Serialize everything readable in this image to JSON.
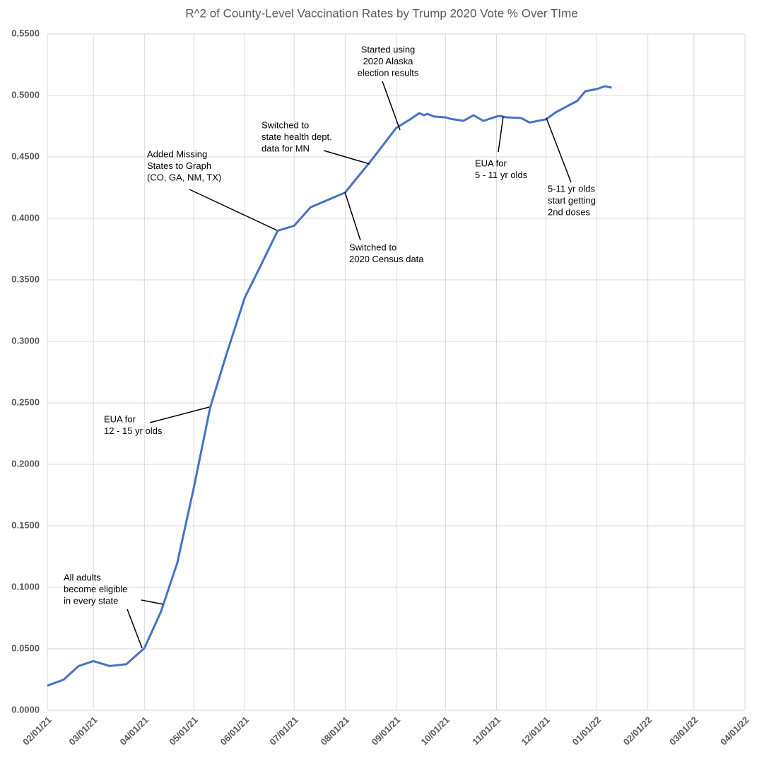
{
  "chart_data": {
    "type": "line",
    "title": "R^2 of County-Level Vaccination Rates by Trump 2020 Vote % Over TIme",
    "color": "#4472c4",
    "grid": true,
    "x": [
      "02/01/21",
      "02/11/21",
      "02/20/21",
      "03/01/21",
      "03/11/21",
      "03/21/21",
      "04/01/21",
      "04/11/21",
      "04/21/21",
      "05/01/21",
      "05/11/21",
      "05/21/21",
      "06/01/21",
      "06/11/21",
      "06/21/21",
      "07/01/21",
      "07/11/21",
      "08/01/21",
      "08/18/21",
      "09/01/21",
      "09/10/21",
      "09/15/21",
      "09/18/21",
      "09/20/21",
      "09/24/21",
      "10/01/21",
      "10/04/21",
      "10/12/21",
      "10/18/21",
      "10/24/21",
      "11/01/21",
      "11/03/21",
      "11/07/21",
      "11/16/21",
      "11/21/21",
      "12/01/21",
      "12/07/21",
      "12/15/21",
      "12/20/21",
      "12/25/21",
      "01/01/22",
      "01/06/22",
      "01/10/22"
    ],
    "values": [
      0.02,
      0.025,
      0.036,
      0.04,
      0.036,
      0.0375,
      0.0505,
      0.08,
      0.12,
      0.181,
      0.2465,
      0.29,
      0.3355,
      0.3625,
      0.39,
      0.394,
      0.409,
      0.421,
      0.449,
      0.4735,
      0.481,
      0.4856,
      0.4839,
      0.485,
      0.4828,
      0.4822,
      0.481,
      0.4793,
      0.4839,
      0.4793,
      0.4828,
      0.4833,
      0.4822,
      0.4816,
      0.478,
      0.4805,
      0.4862,
      0.492,
      0.4954,
      0.5034,
      0.5052,
      0.5075,
      0.5063
    ],
    "xlim": [
      "02/01/21",
      "04/01/22"
    ],
    "xticks": [
      "02/01/21",
      "03/01/21",
      "04/01/21",
      "05/01/21",
      "06/01/21",
      "07/01/21",
      "08/01/21",
      "09/01/21",
      "10/01/21",
      "11/01/21",
      "12/01/21",
      "01/01/22",
      "02/01/22",
      "03/01/22",
      "04/01/22"
    ],
    "ylim": [
      0,
      0.55
    ],
    "yticks": [
      {
        "value": 0,
        "label": "0.0000"
      },
      {
        "value": 0.05,
        "label": "0.0500"
      },
      {
        "value": 0.1,
        "label": "0.1000"
      },
      {
        "value": 0.15,
        "label": "0.1500"
      },
      {
        "value": 0.2,
        "label": "0.2000"
      },
      {
        "value": 0.25,
        "label": "0.2500"
      },
      {
        "value": 0.3,
        "label": "0.3000"
      },
      {
        "value": 0.35,
        "label": "0.3500"
      },
      {
        "value": 0.4,
        "label": "0.4000"
      },
      {
        "value": 0.45,
        "label": "0.4500"
      },
      {
        "value": 0.5,
        "label": "0.5000"
      },
      {
        "value": 0.55,
        "label": "0.5500"
      }
    ],
    "annotations": [
      [
        "All adults",
        "become eligible",
        "in every state"
      ],
      [
        "EUA for",
        "12 - 15 yr olds"
      ],
      [
        "Added Missing",
        "States to Graph",
        "(CO, GA, NM, TX)"
      ],
      [
        "Switched to",
        "state health dept.",
        "data for MN"
      ],
      [
        "Started using",
        "2020 Alaska",
        "election results"
      ],
      [
        "Switched to",
        "2020 Census data"
      ],
      [
        "EUA for",
        "5 - 11 yr olds"
      ],
      [
        "5-11 yr olds",
        "start getting",
        "2nd doses"
      ]
    ]
  }
}
